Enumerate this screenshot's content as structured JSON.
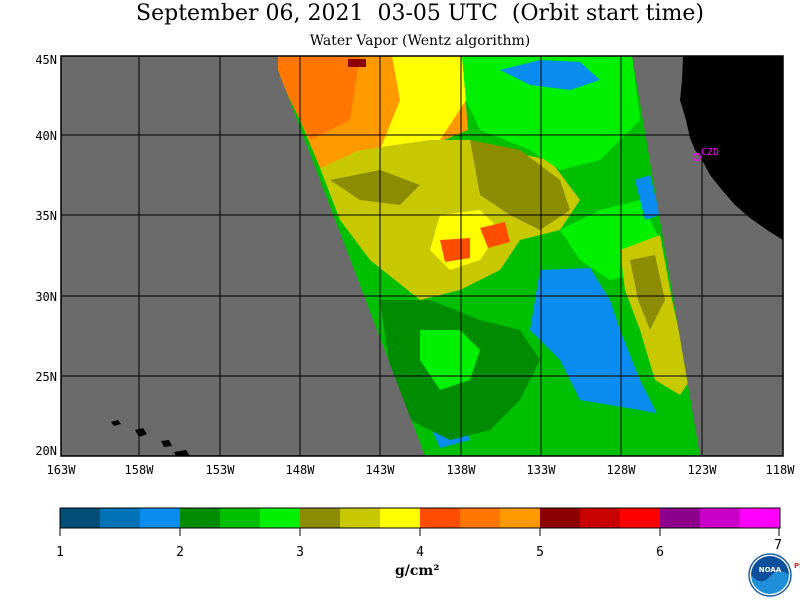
{
  "header": {
    "title": "September 06, 2021  03-05 UTC  (Orbit start time)",
    "subtitle": "Water Vapor (Wentz algorithm)"
  },
  "map": {
    "latitude_labels": [
      "45N",
      "40N",
      "35N",
      "30N",
      "25N",
      "20N"
    ],
    "longitude_labels": [
      "163W",
      "158W",
      "153W",
      "148W",
      "143W",
      "138W",
      "133W",
      "128W",
      "123W",
      "118W"
    ],
    "station_label": "CZD",
    "colors": {
      "background": "#ffffff",
      "no_data": "#6b6b6b",
      "land": "#000000",
      "grid": "#000000",
      "station": "#ff00ff"
    }
  },
  "colorbar": {
    "tick_labels": [
      "1",
      "2",
      "3",
      "4",
      "5",
      "6",
      "7"
    ],
    "units": "g/cm²",
    "colors": [
      "#004d78",
      "#0072b5",
      "#0a8cf0",
      "#008c00",
      "#00bf00",
      "#00f000",
      "#8c8c00",
      "#c8c800",
      "#ffff00",
      "#ff4d00",
      "#ff7700",
      "#ff9900",
      "#8c0000",
      "#c80000",
      "#ff0000",
      "#8c008c",
      "#c800c8",
      "#ff00ff"
    ]
  },
  "logo": {
    "name": "noaa-logo",
    "text": "NOAA",
    "side_text": "PSL"
  }
}
